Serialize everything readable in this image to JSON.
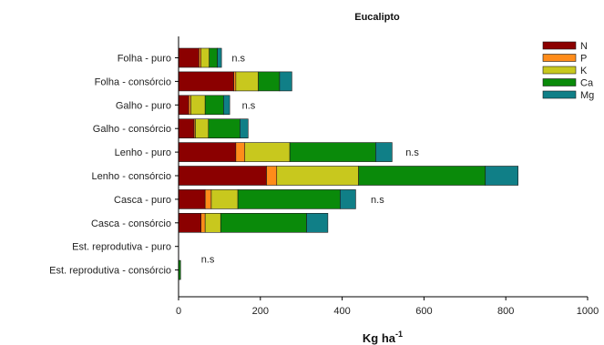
{
  "chart_data": {
    "type": "bar",
    "orientation": "horizontal",
    "stacked": true,
    "title": "Eucalipto",
    "xlabel": "Kg ha",
    "xlabel_superscript": "-1",
    "xlim": [
      0,
      1000
    ],
    "xticks": [
      0,
      200,
      400,
      600,
      800,
      1000
    ],
    "categories": [
      "Folha - puro",
      "Folha - consórcio",
      "Galho - puro",
      "Galho - consórcio",
      "Lenho - puro",
      "Lenho - consórcio",
      "Casca - puro",
      "Casca - consórcio",
      "Est. reprodutiva - puro",
      "Est. reprodutiva - consórcio"
    ],
    "series": [
      {
        "name": "N",
        "color": "#8b0000",
        "values": [
          50,
          135,
          25,
          38,
          140,
          215,
          65,
          55,
          0,
          0
        ]
      },
      {
        "name": "P",
        "color": "#ff8c1a",
        "values": [
          5,
          5,
          5,
          3,
          22,
          25,
          15,
          10,
          0,
          0
        ]
      },
      {
        "name": "K",
        "color": "#c8c81e",
        "values": [
          20,
          55,
          35,
          32,
          110,
          200,
          65,
          38,
          0,
          0
        ]
      },
      {
        "name": "Ca",
        "color": "#0a8a0a",
        "values": [
          20,
          52,
          45,
          77,
          210,
          310,
          250,
          210,
          0,
          5
        ]
      },
      {
        "name": "Mg",
        "color": "#107f87",
        "values": [
          10,
          30,
          15,
          20,
          40,
          80,
          38,
          52,
          0,
          0
        ]
      }
    ],
    "annotations": [
      {
        "category": "Folha - puro",
        "text": "n.s",
        "x": 130
      },
      {
        "category": "Galho - puro",
        "text": "n.s",
        "x": 155
      },
      {
        "category": "Lenho - puro",
        "text": "n.s",
        "x": 555
      },
      {
        "category": "Casca - puro",
        "text": "n.s",
        "x": 470
      },
      {
        "category": "Est. reprodutiva - puro",
        "text": "n.s",
        "x": 55
      }
    ],
    "legend_position": "top-right",
    "grid": false
  }
}
